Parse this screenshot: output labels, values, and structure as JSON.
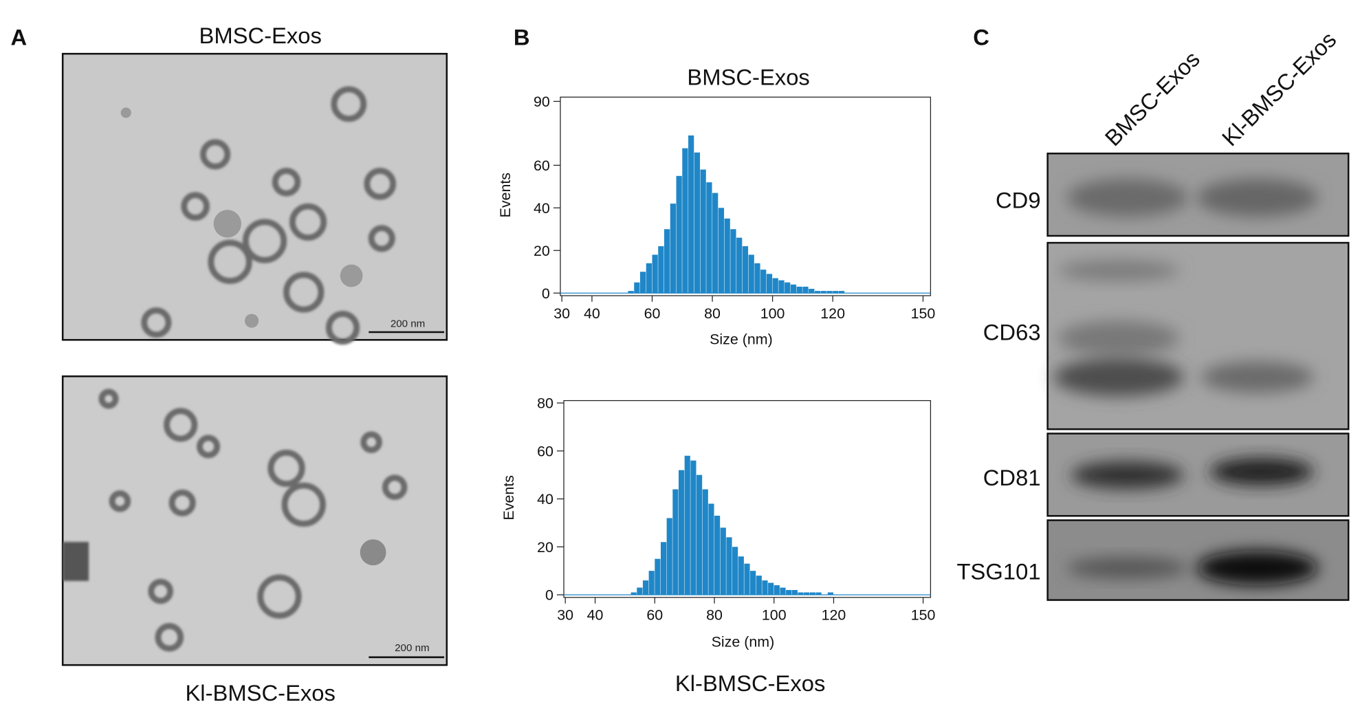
{
  "panel_labels": [
    "A",
    "B",
    "C"
  ],
  "tem": {
    "images": [
      {
        "label": "BMSC-Exos",
        "scale_bar": "200 nm"
      },
      {
        "label": "Kl-BMSC-Exos",
        "scale_bar": "200 nm"
      }
    ]
  },
  "chart_data": [
    {
      "type": "histogram",
      "title": "BMSC-Exos",
      "x_label": "Size (nm)",
      "y_label": "Events",
      "color": "#1f87c8",
      "bins": [
        50,
        52,
        54,
        56,
        58,
        60,
        62,
        64,
        66,
        68,
        70,
        72,
        74,
        76,
        78,
        80,
        82,
        84,
        86,
        88,
        90,
        92,
        94,
        96,
        98,
        100,
        102,
        104,
        106,
        108,
        110,
        112,
        114,
        116,
        118,
        120,
        122,
        124,
        126
      ],
      "values": [
        0,
        1,
        5,
        10,
        14,
        18,
        22,
        30,
        42,
        55,
        68,
        74,
        66,
        58,
        52,
        47,
        40,
        35,
        30,
        26,
        22,
        18,
        14,
        11,
        9,
        7,
        6,
        5,
        4,
        3,
        3,
        2,
        1,
        1,
        1,
        1,
        1,
        0
      ],
      "xlim": [
        29.5,
        152.5
      ],
      "xticks": [
        30,
        40,
        60,
        80,
        100,
        120,
        150
      ],
      "ylim": [
        0,
        92
      ],
      "yticks": [
        0,
        20,
        40,
        60,
        90
      ]
    },
    {
      "type": "histogram",
      "title": "Kl-BMSC-Exos",
      "x_label": "Size (nm)",
      "y_label": "Events",
      "color": "#1f87c8",
      "bins": [
        50,
        52,
        54,
        56,
        58,
        60,
        62,
        64,
        66,
        68,
        70,
        72,
        74,
        76,
        78,
        80,
        82,
        84,
        86,
        88,
        90,
        92,
        94,
        96,
        98,
        100,
        102,
        104,
        106,
        108,
        110,
        112,
        114,
        116,
        118,
        120,
        122,
        124,
        126
      ],
      "values": [
        0,
        1,
        3,
        6,
        10,
        15,
        22,
        32,
        44,
        52,
        58,
        56,
        50,
        44,
        38,
        33,
        28,
        24,
        20,
        16,
        13,
        10,
        8,
        6,
        5,
        4,
        3,
        2,
        2,
        1,
        1,
        1,
        1,
        0,
        1,
        0,
        0,
        0
      ],
      "xlim": [
        29.5,
        152.5
      ],
      "xticks": [
        30,
        40,
        60,
        80,
        100,
        120,
        150
      ],
      "ylim": [
        0,
        81
      ],
      "yticks": [
        0,
        20,
        40,
        60,
        80
      ]
    }
  ],
  "western_blot": {
    "lanes": [
      "BMSC-Exos",
      "Kl-BMSC-Exos"
    ],
    "markers": [
      "CD9",
      "CD63",
      "CD81",
      "TSG101"
    ]
  }
}
